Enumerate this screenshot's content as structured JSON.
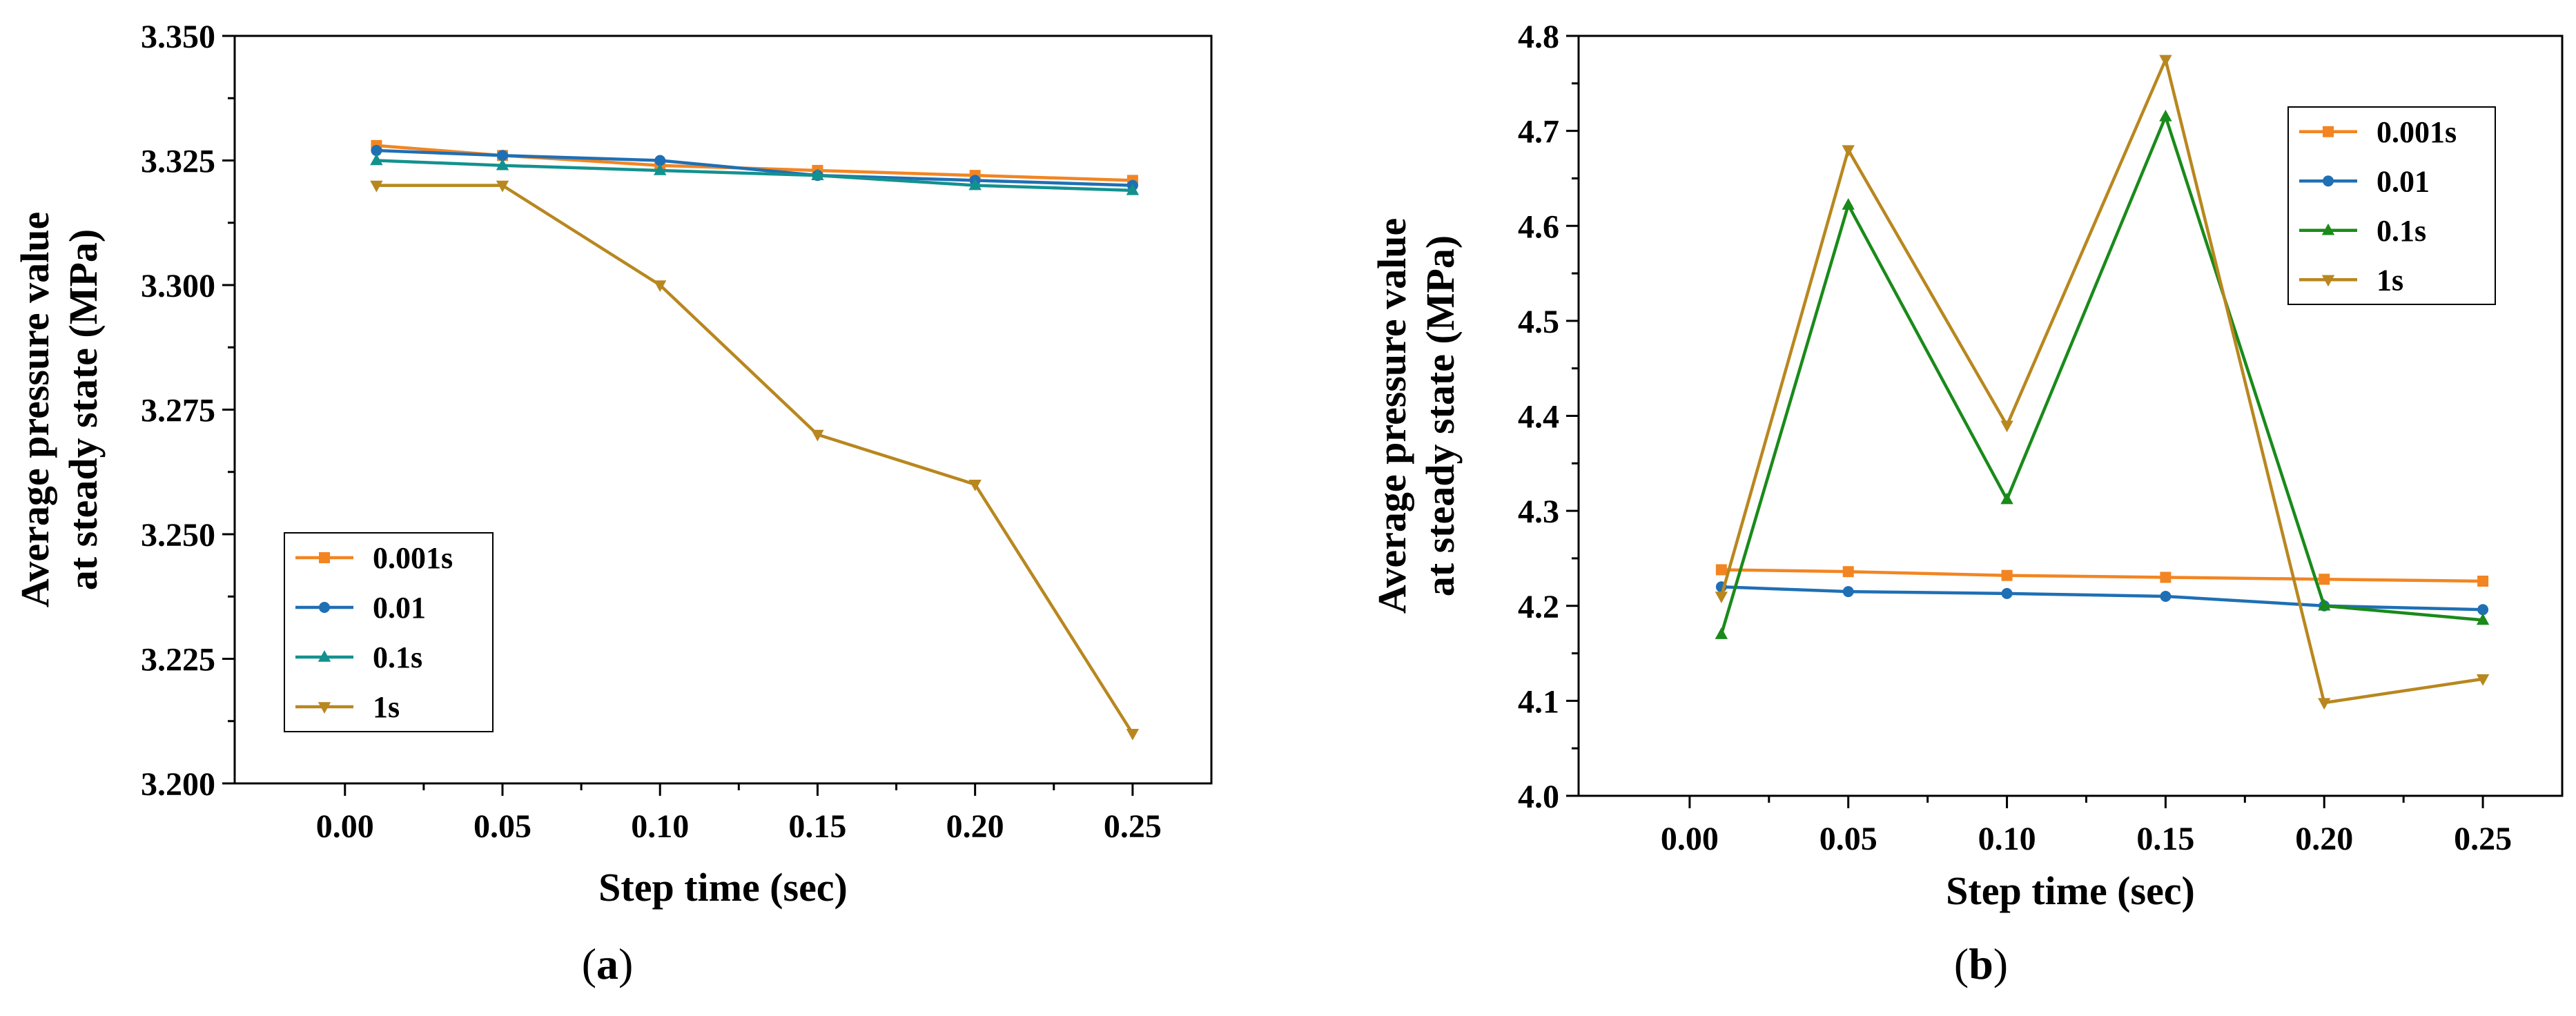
{
  "chart_data": [
    {
      "panel_label_parts": [
        "(",
        "a",
        ")"
      ],
      "type": "line",
      "xlabel": "Step time (sec)",
      "ylabel_lines": [
        "Average pressure value",
        "at steady state (MPa)"
      ],
      "xlim": [
        -0.035,
        0.275
      ],
      "ylim": [
        3.2,
        3.35
      ],
      "x_ticks": [
        "0.00",
        "0.05",
        "0.10",
        "0.15",
        "0.20",
        "0.25"
      ],
      "x_tick_values": [
        0,
        0.05,
        0.1,
        0.15,
        0.2,
        0.25
      ],
      "y_ticks": [
        "3.200",
        "3.225",
        "3.250",
        "3.275",
        "3.300",
        "3.325",
        "3.350"
      ],
      "y_tick_values": [
        3.2,
        3.225,
        3.25,
        3.275,
        3.3,
        3.325,
        3.35
      ],
      "legend_position": "lower-left",
      "x": [
        0.01,
        0.05,
        0.1,
        0.15,
        0.2,
        0.25
      ],
      "series": [
        {
          "name": "0.001s",
          "color": "#F28522",
          "marker": "square",
          "values": [
            3.328,
            3.326,
            3.324,
            3.323,
            3.322,
            3.321
          ]
        },
        {
          "name": "0.01",
          "color": "#1F6FB4",
          "marker": "circle",
          "values": [
            3.327,
            3.326,
            3.325,
            3.322,
            3.321,
            3.32
          ]
        },
        {
          "name": "0.1s",
          "color": "#13918F",
          "marker": "triangle-up",
          "values": [
            3.325,
            3.324,
            3.323,
            3.322,
            3.32,
            3.319
          ]
        },
        {
          "name": "1s",
          "color": "#B8871F",
          "marker": "triangle-down",
          "values": [
            3.32,
            3.32,
            3.3,
            3.27,
            3.26,
            3.21
          ]
        }
      ]
    },
    {
      "panel_label_parts": [
        "(",
        "b",
        ")"
      ],
      "type": "line",
      "xlabel": "Step time (sec)",
      "ylabel_lines": [
        "Average pressure value",
        "at steady state (MPa)"
      ],
      "xlim": [
        -0.035,
        0.275
      ],
      "ylim": [
        4.0,
        4.8
      ],
      "x_ticks": [
        "0.00",
        "0.05",
        "0.10",
        "0.15",
        "0.20",
        "0.25"
      ],
      "x_tick_values": [
        0,
        0.05,
        0.1,
        0.15,
        0.2,
        0.25
      ],
      "y_ticks": [
        "4.0",
        "4.1",
        "4.2",
        "4.3",
        "4.4",
        "4.5",
        "4.6",
        "4.7",
        "4.8"
      ],
      "y_tick_values": [
        4.0,
        4.1,
        4.2,
        4.3,
        4.4,
        4.5,
        4.6,
        4.7,
        4.8
      ],
      "legend_position": "top-right",
      "x": [
        0.01,
        0.05,
        0.1,
        0.15,
        0.2,
        0.25
      ],
      "series": [
        {
          "name": "0.001s",
          "color": "#F28522",
          "marker": "square",
          "values": [
            4.238,
            4.236,
            4.232,
            4.23,
            4.228,
            4.226
          ]
        },
        {
          "name": "0.01",
          "color": "#1F6FB4",
          "marker": "circle",
          "values": [
            4.22,
            4.215,
            4.213,
            4.21,
            4.2,
            4.196
          ]
        },
        {
          "name": "0.1s",
          "color": "#1A8A1A",
          "marker": "triangle-up",
          "values": [
            4.17,
            4.622,
            4.312,
            4.715,
            4.2,
            4.185
          ]
        },
        {
          "name": "1s",
          "color": "#B8871F",
          "marker": "triangle-down",
          "values": [
            4.21,
            4.68,
            4.39,
            4.775,
            4.098,
            4.123
          ]
        }
      ]
    }
  ]
}
